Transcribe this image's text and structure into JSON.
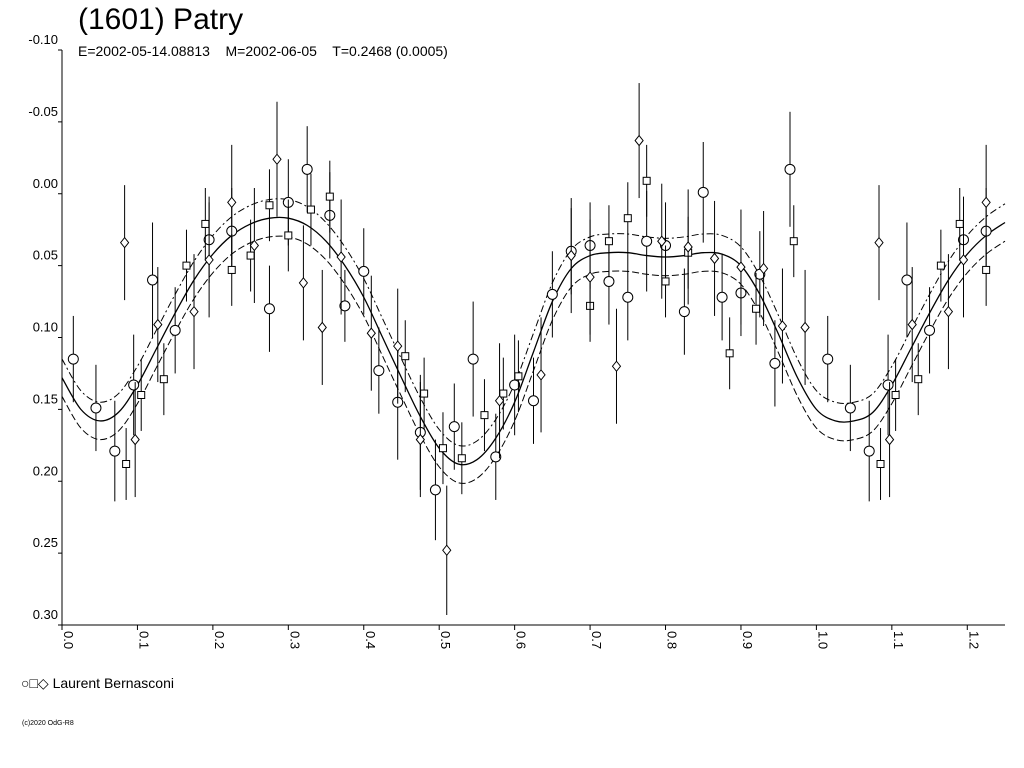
{
  "title": "(1601) Patry",
  "subtitle": "E=2002-05-14.08813    M=2002-06-05    T=0.2468 (0.0005)",
  "legend_symbols": "○□◇",
  "legend_label": "Laurent Bernasconi",
  "copyright": "(c)2020 OdG-R8",
  "chart_data": {
    "type": "scatter",
    "title": "(1601) Patry",
    "subtitle": "E=2002-05-14.08813    M=2002-06-05    T=0.2468 (0.0005)",
    "xlabel": "",
    "ylabel": "",
    "xlim": [
      0.0,
      1.25
    ],
    "ylim": [
      -0.1,
      0.3
    ],
    "y_inverted": true,
    "x_ticks": [
      "0.0",
      "0.1",
      "0.2",
      "0.3",
      "0.4",
      "0.5",
      "0.6",
      "0.7",
      "0.8",
      "0.9",
      "1.0",
      "1.1",
      "1.2"
    ],
    "y_ticks": [
      "-0.10",
      "-0.05",
      "0.00",
      "0.05",
      "0.10",
      "0.15",
      "0.20",
      "0.25",
      "0.30"
    ],
    "grid": false,
    "legend": "bottom-left",
    "series": [
      {
        "name": "Laurent Bernasconi",
        "marker": "circle",
        "points": [
          [
            0.015,
            0.115,
            0.03
          ],
          [
            0.045,
            0.149,
            0.03
          ],
          [
            0.07,
            0.179,
            0.035
          ],
          [
            0.095,
            0.133,
            0.035
          ],
          [
            0.12,
            0.06,
            0.04
          ],
          [
            0.15,
            0.095,
            0.03
          ],
          [
            0.195,
            0.032,
            0.03
          ],
          [
            0.225,
            0.026,
            0.03
          ],
          [
            0.275,
            0.08,
            0.03
          ],
          [
            0.3,
            0.006,
            0.03
          ],
          [
            0.325,
            -0.017,
            0.03
          ],
          [
            0.355,
            0.015,
            0.03
          ],
          [
            0.375,
            0.078,
            0.025
          ],
          [
            0.4,
            0.054,
            0.03
          ],
          [
            0.42,
            0.123,
            0.03
          ],
          [
            0.445,
            0.145,
            0.04
          ],
          [
            0.475,
            0.166,
            0.04
          ],
          [
            0.495,
            0.206,
            0.035
          ],
          [
            0.52,
            0.162,
            0.03
          ],
          [
            0.545,
            0.115,
            0.04
          ],
          [
            0.575,
            0.183,
            0.03
          ],
          [
            0.6,
            0.133,
            0.035
          ],
          [
            0.625,
            0.144,
            0.03
          ],
          [
            0.65,
            0.07,
            0.03
          ],
          [
            0.675,
            0.04,
            0.03
          ],
          [
            0.7,
            0.036,
            0.03
          ],
          [
            0.725,
            0.061,
            0.03
          ],
          [
            0.75,
            0.072,
            0.03
          ],
          [
            0.775,
            0.033,
            0.035
          ],
          [
            0.8,
            0.036,
            0.03
          ],
          [
            0.825,
            0.082,
            0.03
          ],
          [
            0.85,
            -0.001,
            0.035
          ],
          [
            0.875,
            0.072,
            0.03
          ],
          [
            0.9,
            0.069,
            0.03
          ],
          [
            0.925,
            0.056,
            0.03
          ],
          [
            0.945,
            0.118,
            0.03
          ],
          [
            0.965,
            -0.017,
            0.04
          ],
          [
            1.015,
            0.115,
            0.03
          ],
          [
            1.045,
            0.149,
            0.03
          ],
          [
            1.07,
            0.179,
            0.035
          ],
          [
            1.095,
            0.133,
            0.035
          ],
          [
            1.12,
            0.06,
            0.04
          ],
          [
            1.15,
            0.095,
            0.03
          ],
          [
            1.195,
            0.032,
            0.03
          ],
          [
            1.225,
            0.026,
            0.03
          ]
        ]
      },
      {
        "name": "Laurent Bernasconi",
        "marker": "square",
        "points": [
          [
            0.085,
            0.188,
            0.025
          ],
          [
            0.105,
            0.14,
            0.025
          ],
          [
            0.135,
            0.129,
            0.025
          ],
          [
            0.165,
            0.05,
            0.025
          ],
          [
            0.19,
            0.021,
            0.025
          ],
          [
            0.225,
            0.053,
            0.025
          ],
          [
            0.25,
            0.043,
            0.025
          ],
          [
            0.275,
            0.008,
            0.025
          ],
          [
            0.3,
            0.029,
            0.025
          ],
          [
            0.33,
            0.011,
            0.025
          ],
          [
            0.355,
            0.002,
            0.025
          ],
          [
            0.455,
            0.113,
            0.025
          ],
          [
            0.48,
            0.139,
            0.025
          ],
          [
            0.505,
            0.177,
            0.025
          ],
          [
            0.53,
            0.184,
            0.025
          ],
          [
            0.56,
            0.154,
            0.025
          ],
          [
            0.585,
            0.139,
            0.025
          ],
          [
            0.605,
            0.127,
            0.025
          ],
          [
            0.7,
            0.078,
            0.025
          ],
          [
            0.725,
            0.033,
            0.025
          ],
          [
            0.75,
            0.017,
            0.025
          ],
          [
            0.775,
            -0.009,
            0.025
          ],
          [
            0.8,
            0.061,
            0.025
          ],
          [
            0.83,
            0.041,
            0.025
          ],
          [
            0.885,
            0.111,
            0.025
          ],
          [
            0.92,
            0.08,
            0.025
          ],
          [
            0.97,
            0.033,
            0.025
          ],
          [
            1.085,
            0.188,
            0.025
          ],
          [
            1.105,
            0.14,
            0.025
          ],
          [
            1.135,
            0.129,
            0.025
          ],
          [
            1.165,
            0.05,
            0.025
          ],
          [
            1.19,
            0.021,
            0.025
          ],
          [
            1.225,
            0.053,
            0.025
          ]
        ]
      },
      {
        "name": "Laurent Bernasconi",
        "marker": "diamond",
        "points": [
          [
            0.083,
            0.034,
            0.04
          ],
          [
            0.097,
            0.171,
            0.04
          ],
          [
            0.127,
            0.091,
            0.04
          ],
          [
            0.175,
            0.082,
            0.04
          ],
          [
            0.195,
            0.046,
            0.04
          ],
          [
            0.225,
            0.006,
            0.04
          ],
          [
            0.255,
            0.036,
            0.04
          ],
          [
            0.285,
            -0.024,
            0.04
          ],
          [
            0.32,
            0.062,
            0.04
          ],
          [
            0.345,
            0.093,
            0.04
          ],
          [
            0.37,
            0.044,
            0.04
          ],
          [
            0.41,
            0.097,
            0.04
          ],
          [
            0.445,
            0.106,
            0.04
          ],
          [
            0.475,
            0.171,
            0.04
          ],
          [
            0.51,
            0.248,
            0.045
          ],
          [
            0.58,
            0.144,
            0.04
          ],
          [
            0.635,
            0.126,
            0.04
          ],
          [
            0.675,
            0.043,
            0.04
          ],
          [
            0.7,
            0.058,
            0.04
          ],
          [
            0.735,
            0.12,
            0.04
          ],
          [
            0.765,
            -0.037,
            0.04
          ],
          [
            0.795,
            0.033,
            0.04
          ],
          [
            0.83,
            0.037,
            0.04
          ],
          [
            0.865,
            0.045,
            0.04
          ],
          [
            0.9,
            0.051,
            0.04
          ],
          [
            0.93,
            0.052,
            0.04
          ],
          [
            0.955,
            0.092,
            0.04
          ],
          [
            0.985,
            0.093,
            0.04
          ],
          [
            1.083,
            0.034,
            0.04
          ],
          [
            1.097,
            0.171,
            0.04
          ],
          [
            1.127,
            0.091,
            0.04
          ],
          [
            1.175,
            0.082,
            0.04
          ],
          [
            1.195,
            0.046,
            0.04
          ],
          [
            1.225,
            0.006,
            0.04
          ]
        ]
      }
    ],
    "fit_curve": {
      "x": [
        0.0,
        0.025,
        0.05,
        0.075,
        0.1,
        0.125,
        0.15,
        0.175,
        0.2,
        0.225,
        0.25,
        0.275,
        0.3,
        0.325,
        0.35,
        0.375,
        0.4,
        0.425,
        0.45,
        0.475,
        0.5,
        0.525,
        0.55,
        0.575,
        0.6,
        0.625,
        0.65,
        0.675,
        0.7,
        0.725,
        0.75,
        0.775,
        0.8,
        0.825,
        0.85,
        0.875,
        0.9,
        0.925,
        0.95,
        0.975,
        1.0,
        1.025,
        1.05,
        1.075,
        1.1,
        1.125,
        1.15,
        1.175,
        1.2,
        1.225,
        1.25
      ],
      "y": [
        0.128,
        0.15,
        0.158,
        0.152,
        0.133,
        0.108,
        0.083,
        0.06,
        0.042,
        0.029,
        0.021,
        0.017,
        0.017,
        0.022,
        0.033,
        0.05,
        0.072,
        0.1,
        0.128,
        0.155,
        0.177,
        0.188,
        0.185,
        0.17,
        0.145,
        0.11,
        0.075,
        0.052,
        0.043,
        0.041,
        0.041,
        0.043,
        0.044,
        0.043,
        0.041,
        0.042,
        0.05,
        0.07,
        0.098,
        0.128,
        0.15,
        0.158,
        0.158,
        0.152,
        0.133,
        0.108,
        0.083,
        0.06,
        0.042,
        0.029,
        0.02
      ],
      "band": 0.013
    }
  }
}
